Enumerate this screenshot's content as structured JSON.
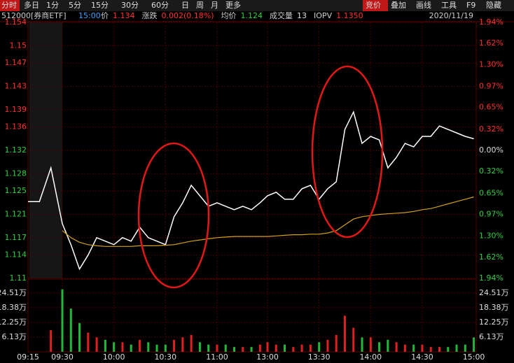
{
  "toolbar": {
    "tabs": [
      "分时",
      "多日",
      "1分",
      "5分",
      "15分",
      "30分",
      "60分",
      "日",
      "周",
      "月",
      "更多"
    ],
    "active": 0,
    "right_tabs": [
      "竞价",
      "叠加",
      "画线",
      "工具",
      "F9",
      "隐藏"
    ],
    "right_active": 0
  },
  "chart_data": {
    "type": "line",
    "symbol": "512000[券商ETF]",
    "time": "15:00",
    "date": "2020/11/19",
    "info": [
      {
        "label": "价",
        "value": "1.134"
      },
      {
        "label": "涨跌",
        "value": "0.002(0.18%)"
      },
      {
        "label": "均价",
        "value": "1.124"
      },
      {
        "label": "成交量",
        "value": "13"
      },
      {
        "label": "IOPV",
        "value": "1.1350"
      }
    ],
    "x": [
      "09:15",
      "09:20",
      "09:25",
      "09:30",
      "09:35",
      "09:40",
      "09:45",
      "09:50",
      "09:55",
      "10:00",
      "10:05",
      "10:10",
      "10:15",
      "10:20",
      "10:25",
      "10:30",
      "10:35",
      "10:40",
      "10:45",
      "10:50",
      "10:55",
      "11:00",
      "11:05",
      "11:10",
      "11:15",
      "11:20",
      "11:25",
      "13:00",
      "13:05",
      "13:10",
      "13:15",
      "13:20",
      "13:25",
      "13:30",
      "13:35",
      "13:40",
      "13:45",
      "13:50",
      "13:55",
      "14:00",
      "14:05",
      "14:10",
      "14:15",
      "14:20",
      "14:25",
      "14:30",
      "14:35",
      "14:40",
      "14:45",
      "14:50",
      "14:55",
      "15:00"
    ],
    "series": [
      {
        "name": "价",
        "color": "#ffffff",
        "values": [
          1.1232,
          1.1232,
          1.129,
          1.1194,
          1.1158,
          1.1116,
          1.114,
          1.117,
          1.1164,
          1.1158,
          1.117,
          1.1164,
          1.1188,
          1.117,
          1.1164,
          1.1158,
          1.1206,
          1.123,
          1.126,
          1.1242,
          1.1224,
          1.123,
          1.1224,
          1.1218,
          1.1224,
          1.1218,
          1.123,
          1.1242,
          1.1248,
          1.1236,
          1.1236,
          1.1254,
          1.126,
          1.1236,
          1.1254,
          1.1266,
          1.1356,
          1.1386,
          1.1332,
          1.1344,
          1.1338,
          1.129,
          1.1308,
          1.1332,
          1.1326,
          1.1344,
          1.1344,
          1.1362,
          1.1356,
          1.135,
          1.1344,
          1.134
        ]
      },
      {
        "name": "均价",
        "color": "#d4a017",
        "values": [
          null,
          null,
          null,
          1.1182,
          1.117,
          1.1162,
          1.1158,
          1.1156,
          1.1155,
          1.1155,
          1.1155,
          1.1155,
          1.1156,
          1.1156,
          1.1156,
          1.1157,
          1.1158,
          1.1161,
          1.1164,
          1.1166,
          1.1168,
          1.117,
          1.1171,
          1.1172,
          1.1172,
          1.1172,
          1.1172,
          1.1172,
          1.1173,
          1.1174,
          1.1175,
          1.1175,
          1.1176,
          1.1176,
          1.1178,
          1.1182,
          1.1192,
          1.1202,
          1.1206,
          1.1208,
          1.121,
          1.1211,
          1.1212,
          1.1213,
          1.1215,
          1.1218,
          1.122,
          1.1224,
          1.1228,
          1.1232,
          1.1236,
          1.124
        ]
      }
    ],
    "volume": {
      "up_color": "#e02020",
      "down_color": "#22b83a",
      "values": [
        0,
        0,
        9,
        26,
        18,
        12,
        8,
        6,
        5,
        4,
        4,
        3,
        5,
        4,
        3,
        3,
        5,
        6,
        7,
        4,
        3,
        3,
        3,
        2,
        2,
        2,
        3,
        4,
        3,
        3,
        2,
        3,
        3,
        4,
        5,
        7,
        15,
        10,
        6,
        6,
        4,
        5,
        4,
        3,
        3,
        3,
        2,
        2,
        2,
        3,
        3,
        6
      ],
      "ylim": [
        0,
        30
      ],
      "yticks": [
        {
          "value": 24.51,
          "label": "24.51万"
        },
        {
          "value": 18.38,
          "label": "18.38万"
        },
        {
          "value": 12.25,
          "label": "12.25万"
        },
        {
          "value": 6.13,
          "label": "6.13万"
        }
      ]
    },
    "ylim": [
      1.11,
      1.154
    ],
    "yticks": [
      1.154,
      1.15,
      1.147,
      1.143,
      1.139,
      1.136,
      1.132,
      1.128,
      1.125,
      1.121,
      1.117,
      1.114,
      1.11
    ],
    "y2lim": [
      -1.94,
      1.94
    ],
    "y2ticks": [
      {
        "value": 1.94,
        "label": "1.94%"
      },
      {
        "value": 1.62,
        "label": "1.62%"
      },
      {
        "value": 1.3,
        "label": "1.30%"
      },
      {
        "value": 0.97,
        "label": "0.97%"
      },
      {
        "value": 0.65,
        "label": "0.65%"
      },
      {
        "value": 0.32,
        "label": "0.32%"
      },
      {
        "value": 0,
        "label": "0.00%"
      },
      {
        "value": -0.32,
        "label": "0.32%"
      },
      {
        "value": -0.65,
        "label": "0.65%"
      },
      {
        "value": -0.97,
        "label": "0.97%"
      },
      {
        "value": -1.3,
        "label": "1.30%"
      },
      {
        "value": -1.62,
        "label": "1.62%"
      },
      {
        "value": -1.94,
        "label": "1.94%"
      }
    ],
    "xticks": [
      "09:15",
      "09:30",
      "10:00",
      "10:30",
      "11:00",
      "13:00",
      "13:30",
      "14:00",
      "14:30",
      "15:00"
    ],
    "grid": true
  }
}
